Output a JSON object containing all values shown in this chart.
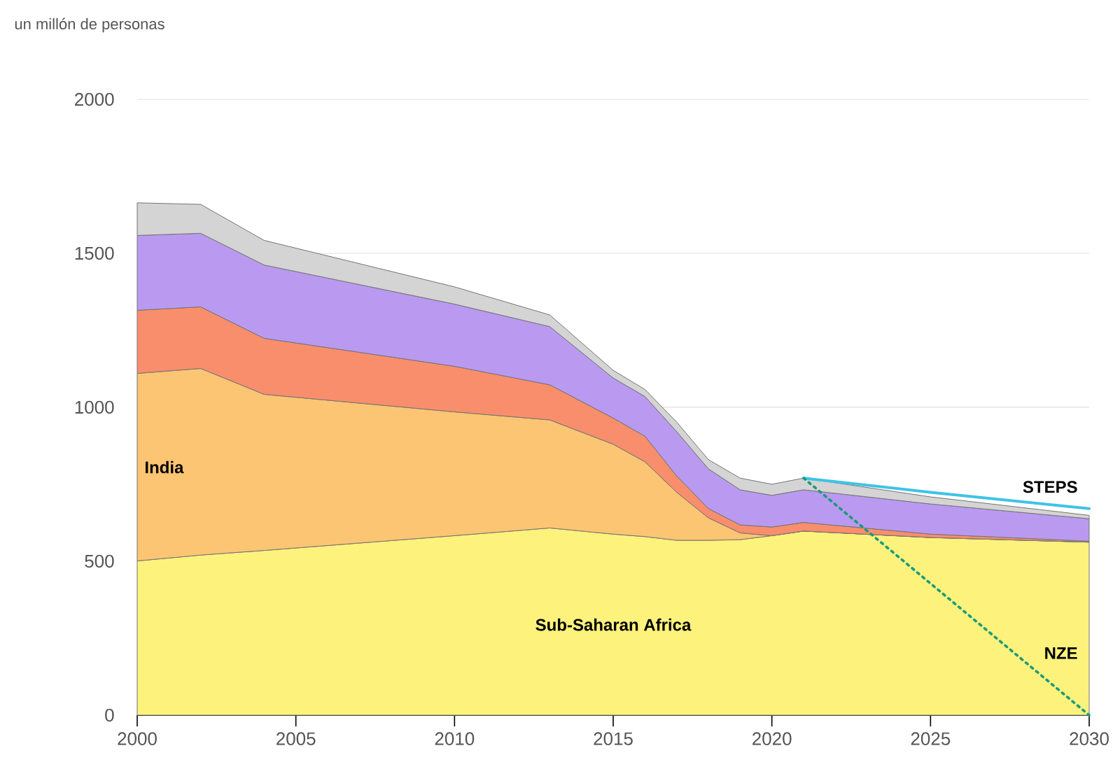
{
  "chart_data": {
    "type": "area",
    "stacked": true,
    "ylabel": "un millón de personas",
    "xlim": [
      2000,
      2030
    ],
    "ylim": [
      0,
      2000
    ],
    "xticks": [
      2000,
      2005,
      2010,
      2015,
      2020,
      2025,
      2030
    ],
    "yticks": [
      0,
      500,
      1000,
      1500,
      2000
    ],
    "grid": "y",
    "x": [
      2000,
      2002,
      2004,
      2010,
      2013,
      2015,
      2016,
      2017,
      2018,
      2019,
      2020,
      2021,
      2025,
      2030
    ],
    "series": [
      {
        "name": "Sub-Saharan Africa",
        "color": "#fdf27c",
        "values": [
          501,
          520,
          535,
          583,
          608,
          588,
          580,
          568,
          568,
          570,
          583,
          598,
          577,
          562
        ]
      },
      {
        "name": "India",
        "color": "#fcc573",
        "values": [
          609,
          606,
          507,
          402,
          351,
          292,
          243,
          156,
          73,
          22,
          0,
          0,
          0,
          0
        ]
      },
      {
        "color": "#f98e6c",
        "values": [
          205,
          200,
          182,
          148,
          114,
          85,
          83,
          53,
          30,
          26,
          28,
          28,
          11,
          3
        ]
      },
      {
        "color": "#b99af0",
        "values": [
          243,
          239,
          238,
          202,
          189,
          130,
          129,
          144,
          129,
          114,
          103,
          106,
          98,
          73
        ]
      },
      {
        "color": "#d4d4d4",
        "values": [
          106,
          94,
          80,
          56,
          38,
          25,
          23,
          31,
          30,
          38,
          36,
          38,
          23,
          11
        ]
      },
      {
        "name": "STEPS",
        "type": "line",
        "color": "#3fc3e6",
        "line_style": "solid",
        "x": [
          2021,
          2025,
          2030
        ],
        "values": [
          770,
          724,
          671
        ]
      },
      {
        "name": "NZE",
        "type": "line",
        "color": "#1a9a7a",
        "line_style": "dotted",
        "x": [
          2021,
          2030
        ],
        "values": [
          770,
          0
        ]
      }
    ]
  }
}
